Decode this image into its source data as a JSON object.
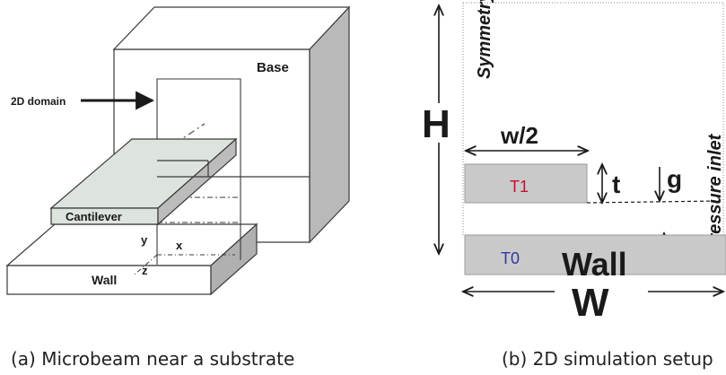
{
  "panel_a": {
    "caption": "(a) Microbeam near a substrate",
    "labels": {
      "base": "Base",
      "domain": "2D domain",
      "cantilever": "Cantilever",
      "wall": "Wall",
      "axis_x": "x",
      "axis_y": "y",
      "axis_z": "z"
    },
    "colors": {
      "beam_fill": "#dde3dd",
      "side_fill": "#b9b9b9",
      "line": "#3a3a3a"
    }
  },
  "panel_b": {
    "caption": "(b) 2D simulation setup",
    "labels": {
      "height": "H",
      "symmetry": "Symmetry",
      "pressure_inlet": "Pressure inlet",
      "half_width": "w/2",
      "thickness": "t",
      "gap": "g",
      "t1": "T1",
      "t0": "T0",
      "wall": "Wall",
      "width": "W"
    },
    "colors": {
      "t1_text": "#c8102e",
      "t0_text": "#2e3a9f",
      "block_fill": "#c9c9c9",
      "block_stroke": "#9a9a9a"
    }
  }
}
